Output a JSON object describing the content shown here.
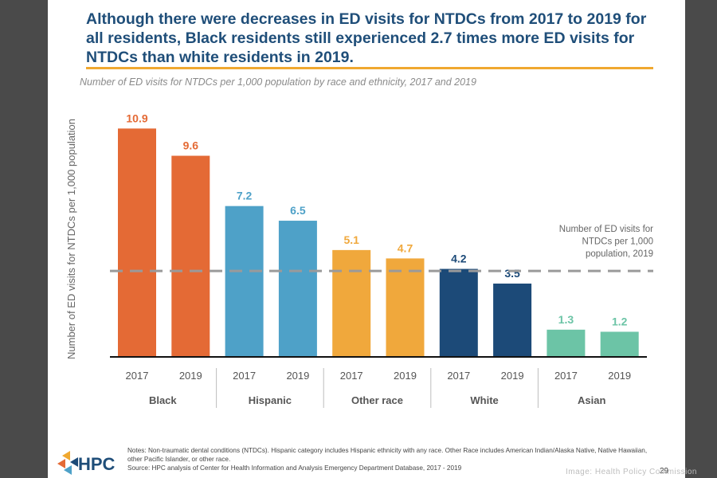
{
  "title": "Although there were decreases in ED visits for NTDCs from 2017 to 2019 for all residents, Black residents still experienced 2.7 times more ED visits for NTDCs than white residents in 2019.",
  "colors": {
    "black_group": "#e46a35",
    "hispanic_group": "#4ea1c8",
    "other_group": "#f0a83c",
    "white_group": "#1c4a78",
    "asian_group": "#6cc4a6",
    "reference_line": "#9a9a9a",
    "title": "#1f4e79",
    "rule": "#f0a830"
  },
  "chart_data": {
    "type": "bar",
    "subtitle": "Number of ED visits for NTDCs per 1,000 population by race and ethnicity, 2017 and 2019",
    "ylabel": "Number of ED visits for NTDCs per 1,000 population",
    "ylim": [
      0,
      12
    ],
    "groups": [
      {
        "name": "Black",
        "color_key": "black_group",
        "years": [
          "2017",
          "2019"
        ],
        "values": [
          10.9,
          9.6
        ],
        "labels": [
          "10.9",
          "9.6"
        ]
      },
      {
        "name": "Hispanic",
        "color_key": "hispanic_group",
        "years": [
          "2017",
          "2019"
        ],
        "values": [
          7.2,
          6.5
        ],
        "labels": [
          "7.2",
          "6.5"
        ]
      },
      {
        "name": "Other race",
        "color_key": "other_group",
        "years": [
          "2017",
          "2019"
        ],
        "values": [
          5.1,
          4.7
        ],
        "labels": [
          "5.1",
          "4.7"
        ]
      },
      {
        "name": "White",
        "color_key": "white_group",
        "years": [
          "2017",
          "2019"
        ],
        "values": [
          4.2,
          3.5
        ],
        "labels": [
          "4.2",
          "3.5"
        ]
      },
      {
        "name": "Asian",
        "color_key": "asian_group",
        "years": [
          "2017",
          "2019"
        ],
        "values": [
          1.3,
          1.2
        ],
        "labels": [
          "1.3",
          "1.2"
        ]
      }
    ],
    "reference_line": {
      "value": 4.1,
      "label_lines": [
        "Number of ED visits for",
        "NTDCs per 1,000",
        "population, 2019"
      ]
    }
  },
  "notes": "Notes: Non-traumatic dental conditions (NTDCs). Hispanic category includes Hispanic ethnicity with any race. Other Race includes American Indian/Alaska Native, Native Hawaiian, other Pacific Islander, or other race.",
  "source": "Source: HPC analysis of Center for Health Information and Analysis Emergency Department Database, 2017 - 2019",
  "logo_text": "HPC",
  "page_number": "29",
  "image_credit": "Image: Health Policy Commission"
}
